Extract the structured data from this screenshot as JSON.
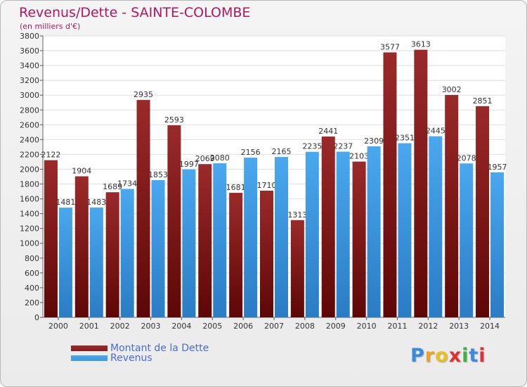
{
  "chart_data": {
    "type": "bar",
    "title": "Revenus/Dette - SAINTE-COLOMBE",
    "subtitle": "(en milliers d'€)",
    "categories": [
      "2000",
      "2001",
      "2002",
      "2003",
      "2004",
      "2005",
      "2006",
      "2007",
      "2008",
      "2009",
      "2010",
      "2011",
      "2012",
      "2013",
      "2014"
    ],
    "series": [
      {
        "name": "Montant de la Dette",
        "color": "#8b1a1a",
        "values": [
          2122,
          1904,
          1689,
          2935,
          2593,
          2069,
          1681,
          1710,
          1313,
          2441,
          2103,
          3577,
          3613,
          3002,
          2851
        ],
        "labels": [
          "2122",
          "1904",
          "1689",
          "2935",
          "2593",
          "2069",
          "1681",
          "1710",
          "1313",
          "2441",
          "2103",
          "3577",
          "3613",
          "3002",
          "2851"
        ]
      },
      {
        "name": "Revenus",
        "color": "#3d98e0",
        "values": [
          1481,
          1483,
          1734,
          1853,
          1997,
          2080,
          2156,
          2165,
          2235,
          2237,
          2309,
          2351,
          2445,
          2078,
          1957
        ],
        "labels": [
          "1481",
          "1483",
          "1734",
          "1853",
          "1997",
          "2080",
          "2156",
          "2165",
          "2235",
          "2237",
          "2309",
          "2351",
          "2445",
          "2078",
          "1957"
        ]
      }
    ],
    "ylim": [
      0,
      3800
    ],
    "yticks": [
      0,
      200,
      400,
      600,
      800,
      1000,
      1200,
      1400,
      1600,
      1800,
      2000,
      2200,
      2400,
      2600,
      2800,
      3000,
      3200,
      3400,
      3600,
      3800
    ],
    "grid": true,
    "legend": "bottom-left"
  },
  "logo": {
    "letters": [
      "P",
      "r",
      "o",
      "x",
      "i",
      "t",
      "i"
    ]
  }
}
